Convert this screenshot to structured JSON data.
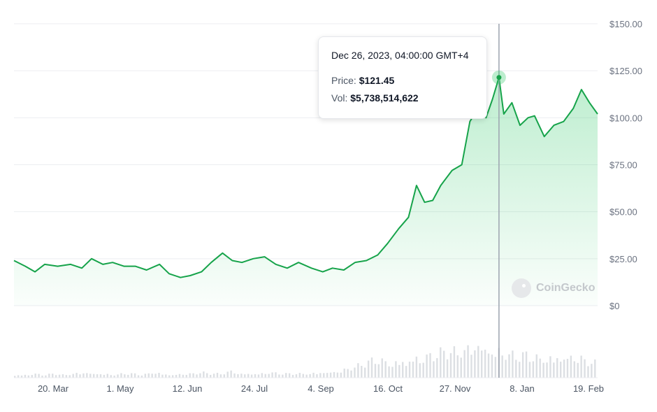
{
  "chart_data": {
    "type": "area",
    "brand": "CoinGecko",
    "colors": {
      "line": "#16a34a",
      "fill": "#22c55e",
      "volume": "#dcdfe3",
      "crosshair": "#9ca3af"
    },
    "yticks": [
      "$150.00",
      "$125.00",
      "$100.00",
      "$75.00",
      "$50.00",
      "$25.00",
      "$0"
    ],
    "ylim": [
      0,
      150
    ],
    "xticks": [
      "20. Mar",
      "1. May",
      "12. Jun",
      "24. Jul",
      "4. Sep",
      "16. Oct",
      "27. Nov",
      "8. Jan",
      "19. Feb"
    ],
    "x_range": [
      "2023-03-01",
      "2024-02-25"
    ],
    "grid": true,
    "series": [
      {
        "type": "line",
        "x": [
          "2023-03-01",
          "2023-03-08",
          "2023-03-14",
          "2023-03-20",
          "2023-03-28",
          "2023-04-05",
          "2023-04-12",
          "2023-04-18",
          "2023-04-25",
          "2023-05-01",
          "2023-05-08",
          "2023-05-15",
          "2023-05-22",
          "2023-05-30",
          "2023-06-05",
          "2023-06-12",
          "2023-06-18",
          "2023-06-25",
          "2023-07-01",
          "2023-07-08",
          "2023-07-14",
          "2023-07-20",
          "2023-07-27",
          "2023-08-03",
          "2023-08-10",
          "2023-08-17",
          "2023-08-24",
          "2023-09-01",
          "2023-09-08",
          "2023-09-14",
          "2023-09-21",
          "2023-09-28",
          "2023-10-05",
          "2023-10-12",
          "2023-10-18",
          "2023-10-25",
          "2023-10-31",
          "2023-11-05",
          "2023-11-10",
          "2023-11-15",
          "2023-11-20",
          "2023-11-27",
          "2023-12-03",
          "2023-12-08",
          "2023-12-13",
          "2023-12-18",
          "2023-12-22",
          "2023-12-26",
          "2023-12-29",
          "2024-01-03",
          "2024-01-08",
          "2024-01-13",
          "2024-01-17",
          "2024-01-23",
          "2024-01-29",
          "2024-02-04",
          "2024-02-10",
          "2024-02-15",
          "2024-02-20",
          "2024-02-25"
        ],
        "y": [
          24,
          21,
          18,
          22,
          21,
          22,
          20,
          25,
          22,
          23,
          21,
          21,
          19,
          22,
          17,
          15,
          16,
          18,
          23,
          28,
          24,
          23,
          25,
          26,
          22,
          20,
          23,
          20,
          18,
          20,
          19,
          23,
          24,
          27,
          33,
          41,
          47,
          64,
          55,
          56,
          64,
          72,
          75,
          98,
          105,
          100,
          110,
          121.45,
          102,
          108,
          96,
          100,
          101,
          90,
          96,
          98,
          105,
          115,
          108,
          102
        ]
      }
    ],
    "volume_relative": [
      2,
      2,
      3,
      2,
      3,
      2,
      3,
      4,
      3,
      3,
      2,
      3,
      3,
      2,
      4,
      3,
      2,
      3,
      3,
      4,
      3,
      3,
      5,
      3,
      3,
      3,
      4,
      3,
      3,
      3,
      3,
      4,
      4,
      5,
      7,
      9,
      12,
      14,
      11,
      12,
      13,
      15,
      16,
      18,
      20,
      19,
      22,
      26,
      21,
      20,
      18,
      16,
      17,
      15,
      14,
      16,
      15,
      17,
      13,
      11
    ],
    "tooltip": {
      "date": "Dec 26, 2023, 04:00:00 GMT+4",
      "price_label": "Price:",
      "price": "$121.45",
      "vol_label": "Vol:",
      "vol": "$5,738,514,622"
    },
    "highlight_x": "2023-12-26",
    "highlight_y": 121.45
  }
}
